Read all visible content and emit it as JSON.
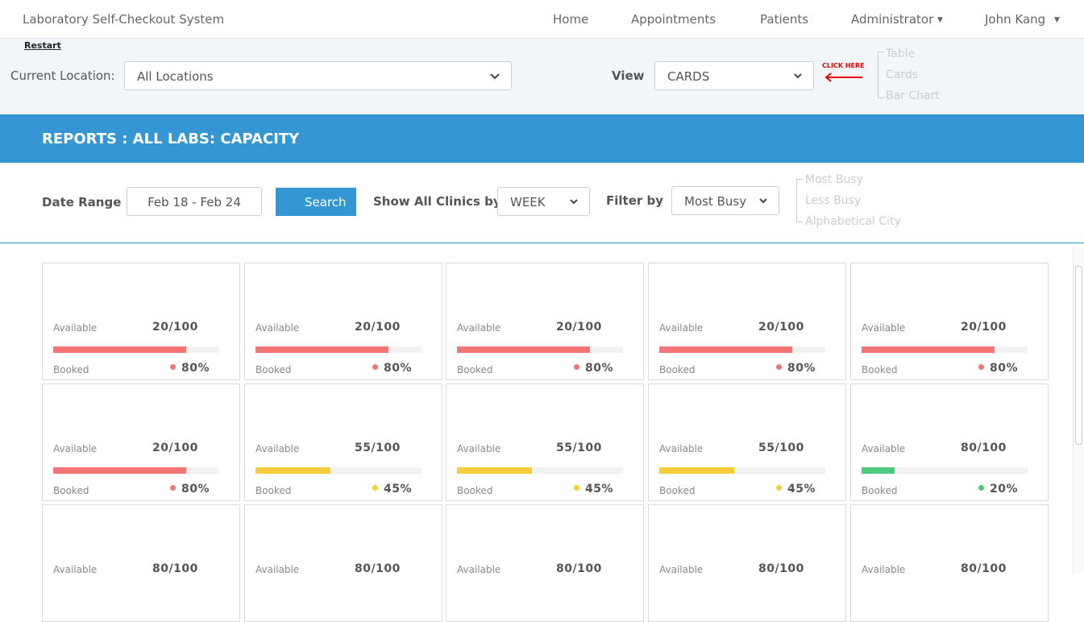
{
  "nav": {
    "brand": "Laboratory Self-Checkout System",
    "links": [
      "Home",
      "Appointments",
      "Patients",
      "Administrator",
      "John Kang"
    ]
  },
  "toolbar": {
    "restart": "Restart",
    "location_label": "Current Location:",
    "location_value": "All Locations",
    "view_label": "View",
    "view_value": "CARDS",
    "hint": "CLICK HERE",
    "view_options": [
      "Table",
      "Cards",
      "Bar Chart"
    ]
  },
  "banner": {
    "title": "REPORTS : ALL LABS:  CAPACITY"
  },
  "filters": {
    "date_label": "Date Range",
    "date_value": "Feb 18 - Feb 24",
    "search": "Search",
    "group_label": "Show All Clinics by",
    "group_value": "WEEK",
    "filter_label": "Filter by",
    "filter_value": "Most Busy",
    "filter_options": [
      "Most Busy",
      "Less Busy",
      "Alphabetical City"
    ]
  },
  "cards": {
    "available_label": "Available",
    "booked_label": "Booked",
    "items": [
      {
        "available": "20/100",
        "booked": 80,
        "booked_label": "80%",
        "color": "#f47575"
      },
      {
        "available": "20/100",
        "booked": 80,
        "booked_label": "80%",
        "color": "#f47575"
      },
      {
        "available": "20/100",
        "booked": 80,
        "booked_label": "80%",
        "color": "#f47575"
      },
      {
        "available": "20/100",
        "booked": 80,
        "booked_label": "80%",
        "color": "#f47575"
      },
      {
        "available": "20/100",
        "booked": 80,
        "booked_label": "80%",
        "color": "#f47575"
      },
      {
        "available": "20/100",
        "booked": 80,
        "booked_label": "80%",
        "color": "#f47575"
      },
      {
        "available": "55/100",
        "booked": 45,
        "booked_label": "45%",
        "color": "#f8cd3c"
      },
      {
        "available": "55/100",
        "booked": 45,
        "booked_label": "45%",
        "color": "#f8cd3c"
      },
      {
        "available": "55/100",
        "booked": 45,
        "booked_label": "45%",
        "color": "#f8cd3c"
      },
      {
        "available": "80/100",
        "booked": 20,
        "booked_label": "20%",
        "color": "#4cc97a"
      },
      {
        "available": "80/100"
      },
      {
        "available": "80/100"
      },
      {
        "available": "80/100"
      },
      {
        "available": "80/100"
      },
      {
        "available": "80/100"
      }
    ]
  }
}
